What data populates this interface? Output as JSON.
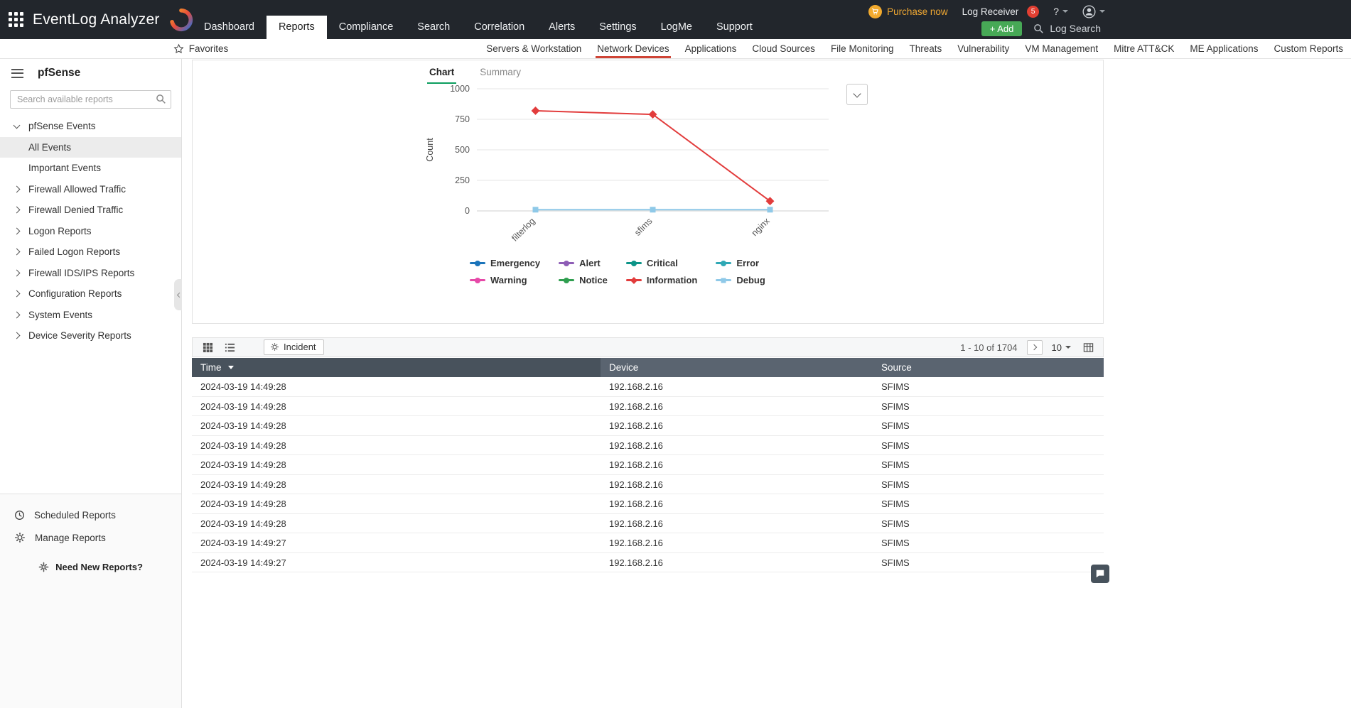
{
  "topbar": {
    "product": "EventLog Analyzer",
    "purchase_now": "Purchase now",
    "log_receiver": "Log Receiver",
    "notification_count": "5",
    "help": "?",
    "nav": [
      {
        "label": "Dashboard",
        "active": false
      },
      {
        "label": "Reports",
        "active": true
      },
      {
        "label": "Compliance",
        "active": false
      },
      {
        "label": "Search",
        "active": false
      },
      {
        "label": "Correlation",
        "active": false
      },
      {
        "label": "Alerts",
        "active": false
      },
      {
        "label": "Settings",
        "active": false
      },
      {
        "label": "LogMe",
        "active": false
      },
      {
        "label": "Support",
        "active": false
      }
    ],
    "add_button": "+ Add",
    "log_search": "Log Search"
  },
  "subnav": {
    "items": [
      {
        "label": "Servers & Workstation",
        "active": false
      },
      {
        "label": "Network Devices",
        "active": true
      },
      {
        "label": "Applications",
        "active": false
      },
      {
        "label": "Cloud Sources",
        "active": false
      },
      {
        "label": "File Monitoring",
        "active": false
      },
      {
        "label": "Threats",
        "active": false
      },
      {
        "label": "Vulnerability",
        "active": false
      },
      {
        "label": "VM Management",
        "active": false
      },
      {
        "label": "Mitre ATT&CK",
        "active": false
      },
      {
        "label": "ME Applications",
        "active": false
      },
      {
        "label": "Custom Reports",
        "active": false
      }
    ],
    "favorites": "Favorites"
  },
  "sidebar": {
    "title": "pfSense",
    "search_placeholder": "Search available reports",
    "tree": [
      {
        "label": "pfSense Events",
        "chevron": "down",
        "selected": false
      },
      {
        "label": "All Events",
        "chevron": "none",
        "selected": true
      },
      {
        "label": "Important Events",
        "chevron": "none",
        "selected": false
      },
      {
        "label": "Firewall Allowed Traffic",
        "chevron": "right",
        "selected": false
      },
      {
        "label": "Firewall Denied Traffic",
        "chevron": "right",
        "selected": false
      },
      {
        "label": "Logon Reports",
        "chevron": "right",
        "selected": false
      },
      {
        "label": "Failed Logon Reports",
        "chevron": "right",
        "selected": false
      },
      {
        "label": "Firewall IDS/IPS Reports",
        "chevron": "right",
        "selected": false
      },
      {
        "label": "Configuration Reports",
        "chevron": "right",
        "selected": false
      },
      {
        "label": "System Events",
        "chevron": "right",
        "selected": false
      },
      {
        "label": "Device Severity Reports",
        "chevron": "right",
        "selected": false
      }
    ],
    "footer": {
      "scheduled_reports": "Scheduled Reports",
      "manage_reports": "Manage Reports",
      "need_new_reports": "Need New Reports?"
    }
  },
  "report": {
    "tabs": [
      {
        "label": "Chart",
        "active": true
      },
      {
        "label": "Summary",
        "active": false
      }
    ]
  },
  "chart_data": {
    "type": "line",
    "categories": [
      "filterlog",
      "sfims",
      "nginx"
    ],
    "series": [
      {
        "name": "Information",
        "color": "#e23c3c",
        "marker": "diamond",
        "values": [
          820,
          790,
          80
        ]
      },
      {
        "name": "Debug",
        "color": "#8fc9e8",
        "marker": "square",
        "values": [
          10,
          10,
          10
        ]
      }
    ],
    "legend": [
      {
        "name": "Emergency",
        "color": "#1b74ba",
        "marker": "circle"
      },
      {
        "name": "Alert",
        "color": "#8e5db6",
        "marker": "circle"
      },
      {
        "name": "Critical",
        "color": "#0d9488",
        "marker": "circle"
      },
      {
        "name": "Error",
        "color": "#2fa8b5",
        "marker": "circle"
      },
      {
        "name": "Warning",
        "color": "#e649a8",
        "marker": "circle"
      },
      {
        "name": "Notice",
        "color": "#2f9e4f",
        "marker": "circle"
      },
      {
        "name": "Information",
        "color": "#e23c3c",
        "marker": "diamond"
      },
      {
        "name": "Debug",
        "color": "#8fc9e8",
        "marker": "square"
      }
    ],
    "title": "",
    "xlabel": "",
    "ylabel": "Count",
    "yticks": [
      0,
      250,
      500,
      750,
      1000
    ],
    "ylim": [
      0,
      1000
    ],
    "grid": true,
    "legend_position": "bottom"
  },
  "table": {
    "incident_button": "Incident",
    "pagination": {
      "range": "1 - 10 of 1704",
      "page_size": "10"
    },
    "columns": [
      {
        "label": "Time",
        "sorted": true
      },
      {
        "label": "Device",
        "sorted": false
      },
      {
        "label": "Source",
        "sorted": false
      }
    ],
    "rows": [
      {
        "time": "2024-03-19 14:49:28",
        "device": "192.168.2.16",
        "source": "SFIMS"
      },
      {
        "time": "2024-03-19 14:49:28",
        "device": "192.168.2.16",
        "source": "SFIMS"
      },
      {
        "time": "2024-03-19 14:49:28",
        "device": "192.168.2.16",
        "source": "SFIMS"
      },
      {
        "time": "2024-03-19 14:49:28",
        "device": "192.168.2.16",
        "source": "SFIMS"
      },
      {
        "time": "2024-03-19 14:49:28",
        "device": "192.168.2.16",
        "source": "SFIMS"
      },
      {
        "time": "2024-03-19 14:49:28",
        "device": "192.168.2.16",
        "source": "SFIMS"
      },
      {
        "time": "2024-03-19 14:49:28",
        "device": "192.168.2.16",
        "source": "SFIMS"
      },
      {
        "time": "2024-03-19 14:49:28",
        "device": "192.168.2.16",
        "source": "SFIMS"
      },
      {
        "time": "2024-03-19 14:49:27",
        "device": "192.168.2.16",
        "source": "SFIMS"
      },
      {
        "time": "2024-03-19 14:49:27",
        "device": "192.168.2.16",
        "source": "SFIMS"
      }
    ]
  }
}
